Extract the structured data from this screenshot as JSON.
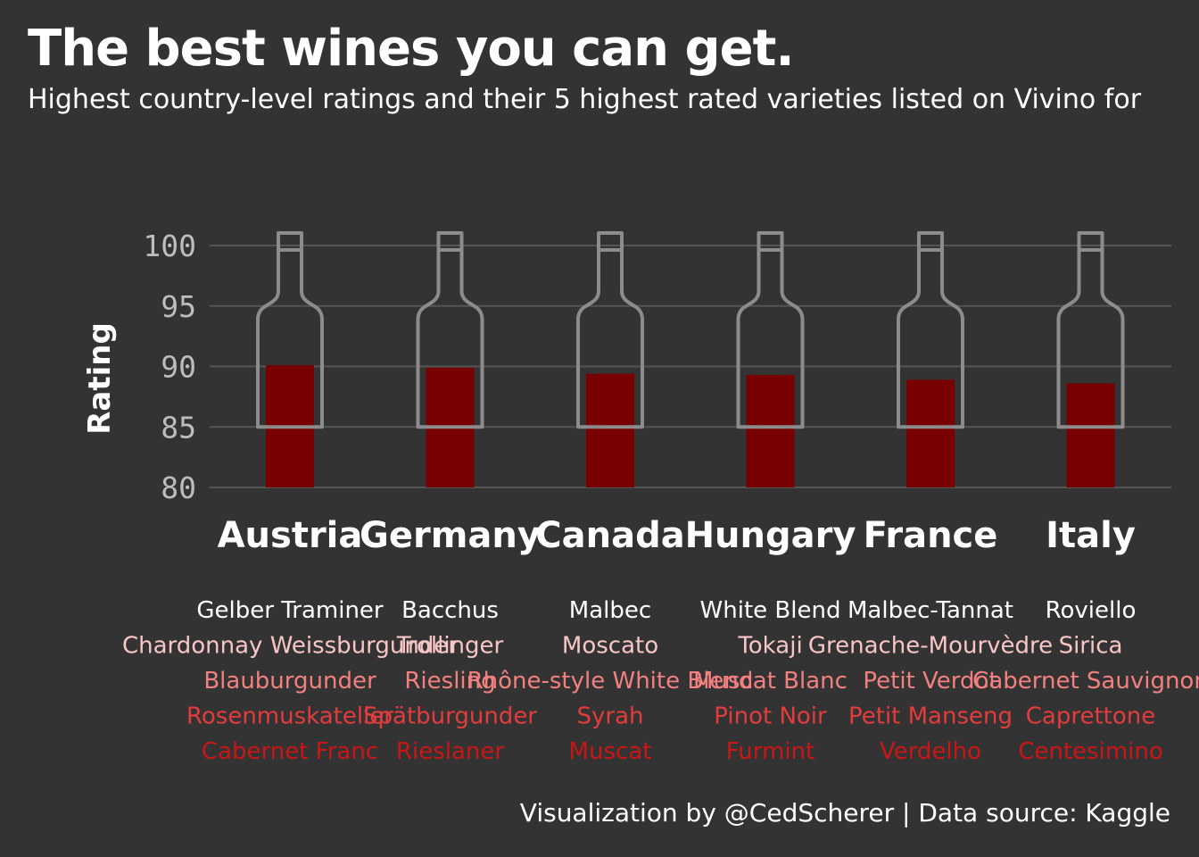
{
  "title": "The best wines you can get.",
  "subtitle": "Highest country-level ratings and their 5 highest rated varieties listed on Vivino for",
  "caption": "Visualization by @CedScherer  |  Data source: Kaggle",
  "colors": {
    "background": "#333333",
    "bar": "#780000",
    "bottle": "#8c8c8c",
    "grid": "#555555",
    "variety_colors": [
      "#ffffff",
      "#f8c6c6",
      "#f28080",
      "#e43c3c",
      "#c91616"
    ]
  },
  "chart_data": {
    "type": "bar",
    "ylabel": "Rating",
    "ylim": [
      80,
      100
    ],
    "yticks": [
      80,
      85,
      90,
      95,
      100
    ],
    "grid": true,
    "categories": [
      "Austria",
      "Germany",
      "Canada",
      "Hungary",
      "France",
      "Italy"
    ],
    "values": [
      90.1,
      89.9,
      89.4,
      89.3,
      88.9,
      88.6
    ],
    "varieties": [
      [
        "Gelber Traminer",
        "Chardonnay Weissburgunder",
        "Blauburgunder",
        "Rosenmuskateller",
        "Cabernet Franc"
      ],
      [
        "Bacchus",
        "Trollinger",
        "Riesling",
        "Spätburgunder",
        "Rieslaner"
      ],
      [
        "Malbec",
        "Moscato",
        "Rhône-style White Blend",
        "Syrah",
        "Muscat"
      ],
      [
        "White Blend",
        "Tokaji",
        "Muscat Blanc",
        "Pinot Noir",
        "Furmint"
      ],
      [
        "Malbec-Tannat",
        "Grenache-Mourvèdre",
        "Petit Verdot",
        "Petit Manseng",
        "Verdelho"
      ],
      [
        "Roviello",
        "Sirica",
        "Cabernet Sauvignon",
        "Caprettone",
        "Centesimino"
      ]
    ]
  }
}
